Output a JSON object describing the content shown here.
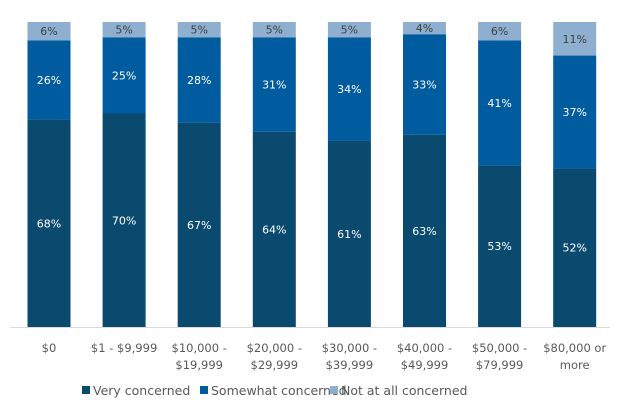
{
  "chart_data": {
    "type": "bar",
    "stacked": true,
    "categories": [
      [
        "$0"
      ],
      [
        "$1 - $9,999"
      ],
      [
        "$10,000 -",
        "$19,999"
      ],
      [
        "$20,000 -",
        "$29,999"
      ],
      [
        "$30,000 -",
        "$39,999"
      ],
      [
        "$40,000 -",
        "$49,999"
      ],
      [
        "$50,000 -",
        "$79,999"
      ],
      [
        "$80,000 or",
        "more"
      ]
    ],
    "series": [
      {
        "name": "Very concerned",
        "color": "#0b4a6f",
        "values": [
          68,
          70,
          67,
          64,
          61,
          63,
          53,
          52
        ]
      },
      {
        "name": "Somewhat concerned",
        "color": "#005b9f",
        "values": [
          26,
          25,
          28,
          31,
          34,
          33,
          41,
          37
        ]
      },
      {
        "name": "Not at all concerned",
        "color": "#8eafd0",
        "values": [
          6,
          5,
          5,
          5,
          5,
          4,
          6,
          11
        ]
      }
    ],
    "ylim": [
      0,
      100
    ],
    "grid": false,
    "legend": "bottom",
    "value_format": "{v}%"
  }
}
